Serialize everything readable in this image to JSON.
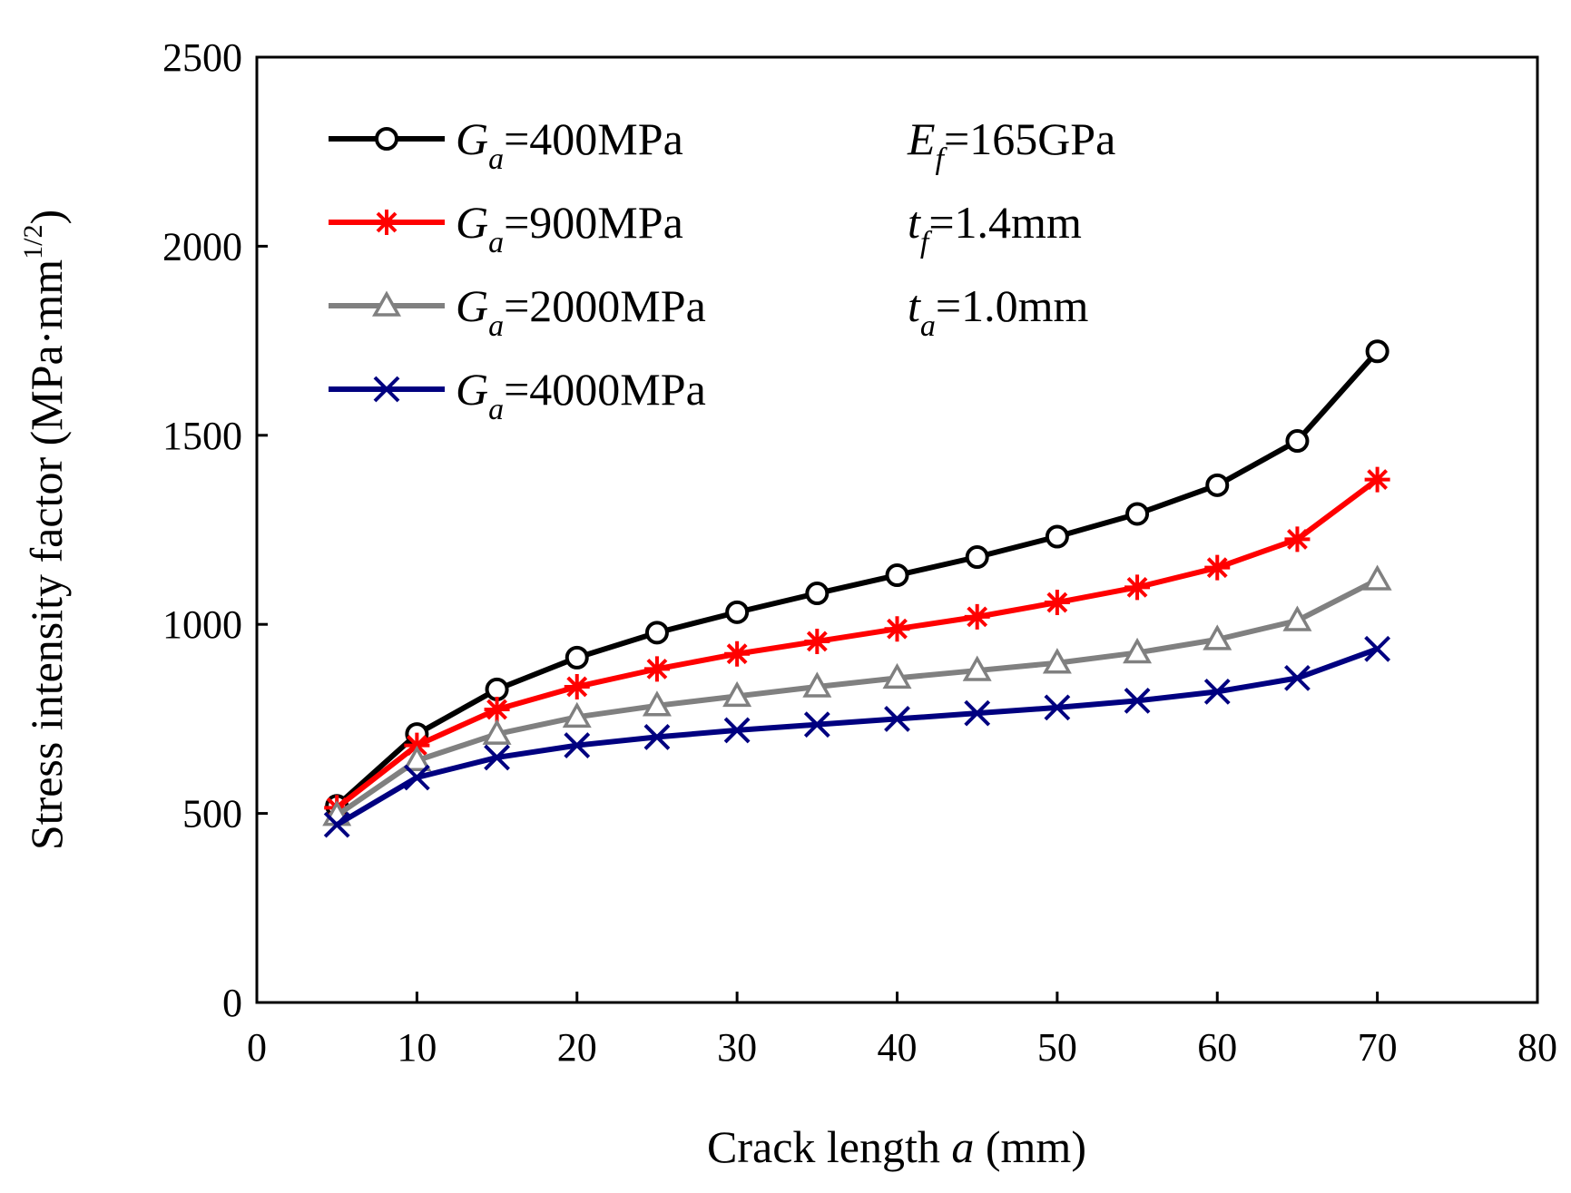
{
  "chart_data": {
    "type": "line",
    "xlabel": {
      "prefix": "Crack length ",
      "var": "a",
      "suffix": " (mm)"
    },
    "ylabel": {
      "prefix": "Stress intensity factor (MPa·mm",
      "sup": "1/2",
      "suffix": ")"
    },
    "xlim": [
      0,
      80
    ],
    "ylim": [
      0,
      2500
    ],
    "xticks": [
      0,
      10,
      20,
      30,
      40,
      50,
      60,
      70,
      80
    ],
    "yticks": [
      0,
      500,
      1000,
      1500,
      2000,
      2500
    ],
    "legend_position": "top-left",
    "x": [
      5,
      10,
      15,
      20,
      25,
      30,
      35,
      40,
      45,
      50,
      55,
      60,
      65,
      70
    ],
    "series": [
      {
        "name": "Ga=400MPa",
        "sym": "G",
        "sub": "a",
        "rest": "=400MPa",
        "color": "#000000",
        "marker": "circle",
        "values": [
          520,
          710,
          828,
          912,
          978,
          1032,
          1082,
          1130,
          1178,
          1232,
          1292,
          1368,
          1485,
          1722
        ]
      },
      {
        "name": "Ga=900MPa",
        "sym": "G",
        "sub": "a",
        "rest": "=900MPa",
        "color": "#ff0000",
        "marker": "asterisk",
        "values": [
          515,
          680,
          775,
          835,
          882,
          922,
          955,
          988,
          1020,
          1058,
          1098,
          1150,
          1225,
          1383
        ]
      },
      {
        "name": "Ga=2000MPa",
        "sym": "G",
        "sub": "a",
        "rest": "=2000MPa",
        "color": "#808080",
        "marker": "triangle",
        "values": [
          495,
          640,
          710,
          755,
          785,
          810,
          835,
          858,
          878,
          898,
          925,
          960,
          1010,
          1118
        ]
      },
      {
        "name": "Ga=4000MPa",
        "sym": "G",
        "sub": "a",
        "rest": "=4000MPa",
        "color": "#000080",
        "marker": "x",
        "values": [
          470,
          595,
          648,
          680,
          702,
          720,
          735,
          750,
          765,
          780,
          798,
          822,
          858,
          935
        ]
      }
    ],
    "annotations": [
      {
        "sym": "E",
        "sub": "f",
        "rest": "=165GPa"
      },
      {
        "sym": "t",
        "sub": "f",
        "rest": "=1.4mm"
      },
      {
        "sym": "t",
        "sub": "a",
        "rest": "=1.0mm"
      }
    ]
  }
}
